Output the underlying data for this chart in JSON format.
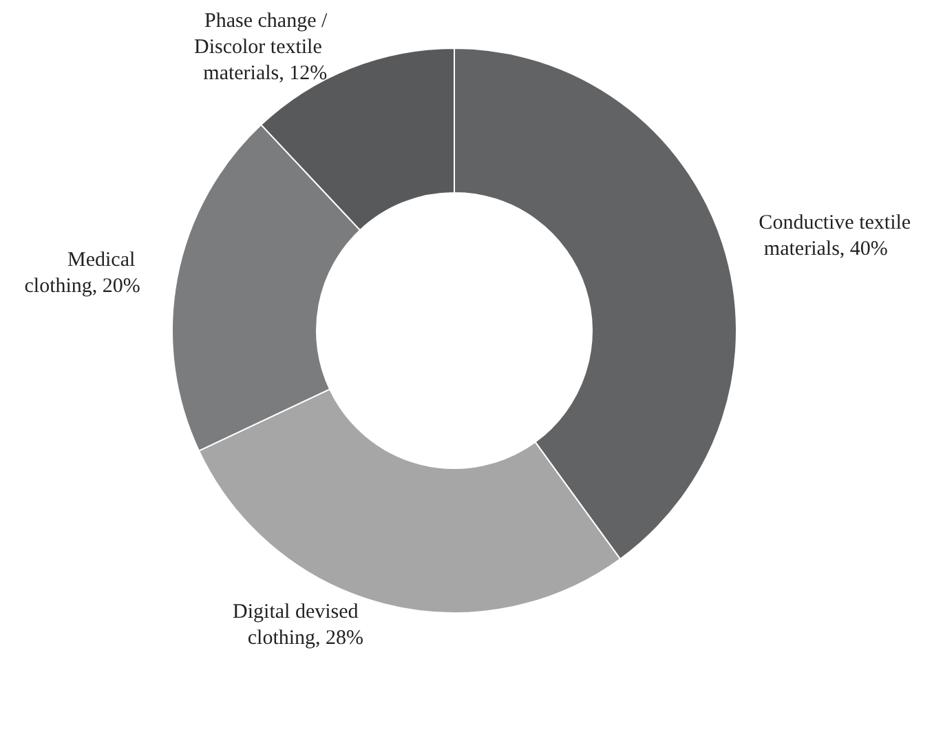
{
  "chart_data": {
    "type": "donut",
    "categories": [
      "Conductive textile materials",
      "Digital devised clothing",
      "Medical clothing",
      "Phase change /Discolor textile materials"
    ],
    "values": [
      40,
      28,
      20,
      12
    ],
    "value_labels": [
      "40%",
      "28%",
      "20%",
      "12%"
    ],
    "colors": [
      "#616365",
      "#a6a6a6",
      "#7b7c7e",
      "#58595b"
    ],
    "legend": false
  }
}
